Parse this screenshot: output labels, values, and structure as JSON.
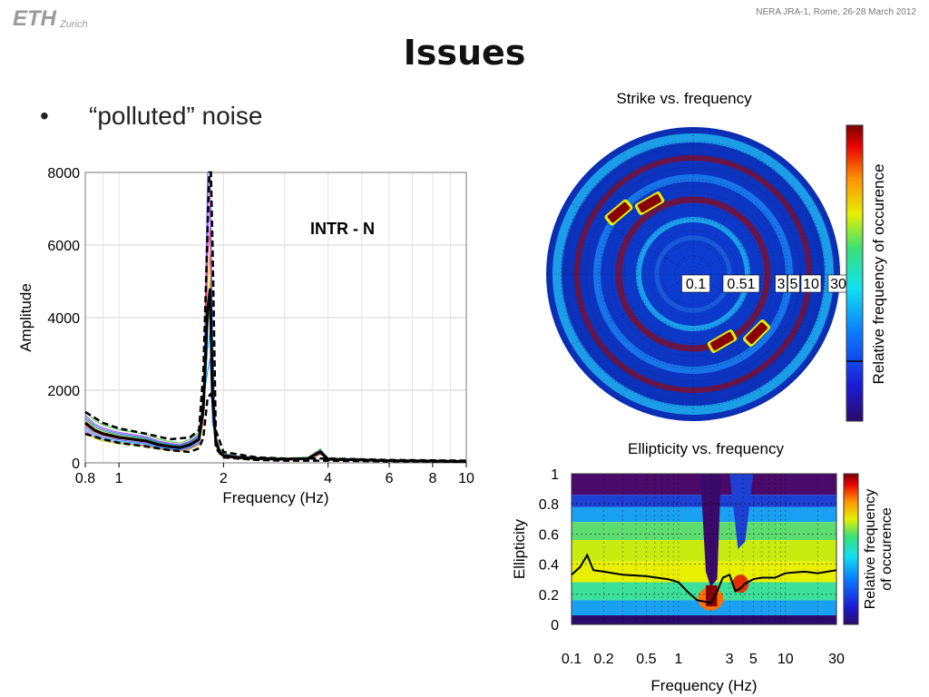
{
  "header": {
    "logo_text": "ETH",
    "logo_sub": "Zurich",
    "conference": "NERA JRA-1, Rome, 26-28 March 2012"
  },
  "slide": {
    "title": "Issues",
    "bullet": "“polluted” noise"
  },
  "colors": {
    "jet_low": "#2a0a6a",
    "jet_high": "#7a0000",
    "mean_line": "#000000"
  },
  "chart_data": [
    {
      "type": "line",
      "title": "",
      "annotation": "INTR - N",
      "xlabel": "Frequency (Hz)",
      "ylabel": "Amplitude",
      "xscale": "log",
      "xlim": [
        0.8,
        10
      ],
      "ylim": [
        0,
        8000
      ],
      "xticks": [
        0.8,
        1,
        2,
        4,
        6,
        8,
        10
      ],
      "xtick_labels": [
        "0.8",
        "1",
        "2",
        "4",
        "6",
        "8",
        "10"
      ],
      "yticks": [
        0,
        2000,
        4000,
        6000,
        8000
      ],
      "ytick_labels": [
        "0",
        "2000",
        "4000",
        "6000",
        "8000"
      ],
      "grid": true,
      "series": [
        {
          "style": "mean",
          "x": [
            0.8,
            0.85,
            0.9,
            0.95,
            1.0,
            1.1,
            1.2,
            1.3,
            1.4,
            1.5,
            1.6,
            1.7,
            1.75,
            1.8,
            1.83,
            1.86,
            1.9,
            1.95,
            2.0,
            2.2,
            2.5,
            3.0,
            3.5,
            3.8,
            4.0,
            5.0,
            6.0,
            8.0,
            10.0
          ],
          "y": [
            1100,
            900,
            800,
            750,
            700,
            650,
            600,
            500,
            450,
            420,
            500,
            650,
            1500,
            4200,
            4800,
            1800,
            600,
            300,
            200,
            150,
            120,
            100,
            120,
            300,
            100,
            80,
            60,
            50,
            40
          ]
        },
        {
          "style": "dashed",
          "x": [
            0.8,
            0.9,
            1.0,
            1.2,
            1.4,
            1.6,
            1.7,
            1.75,
            1.8,
            1.82,
            1.84,
            1.86,
            1.9,
            2.0,
            2.5,
            3.0,
            4.0,
            6.0,
            10.0
          ],
          "y": [
            1400,
            1100,
            950,
            800,
            650,
            700,
            900,
            2500,
            6500,
            8000,
            8000,
            6000,
            900,
            300,
            150,
            120,
            120,
            80,
            60
          ]
        },
        {
          "style": "dashed",
          "x": [
            0.8,
            0.9,
            1.0,
            1.2,
            1.4,
            1.6,
            1.7,
            1.75,
            1.8,
            1.84,
            1.88,
            1.9,
            2.0,
            2.5,
            3.0,
            4.0,
            6.0,
            10.0
          ],
          "y": [
            800,
            650,
            550,
            450,
            350,
            300,
            400,
            700,
            1800,
            1900,
            1500,
            400,
            150,
            80,
            60,
            60,
            40,
            30
          ]
        }
      ]
    },
    {
      "type": "heatmap",
      "title": "Strike vs. frequency",
      "projection": "polar",
      "ring_labels": [
        "0.1",
        "0.51",
        "3",
        "5",
        "10",
        "30"
      ],
      "colorbar_label": "Relative frequency of occurence",
      "colormap": "jet"
    },
    {
      "type": "heatmap",
      "title": "Ellipticity vs. frequency",
      "xlabel": "Frequency (Hz)",
      "ylabel": "Ellipticity",
      "xscale": "log",
      "xlim": [
        0.1,
        30
      ],
      "ylim": [
        0,
        1
      ],
      "xticks": [
        0.1,
        0.2,
        0.5,
        1,
        3,
        5,
        10,
        30
      ],
      "xtick_labels": [
        "0.1",
        "0.2",
        "0.5",
        "1",
        "3",
        "5",
        "10",
        "30"
      ],
      "yticks": [
        0,
        0.2,
        0.4,
        0.6,
        0.8,
        1
      ],
      "ytick_labels": [
        "0",
        "0.2",
        "0.4",
        "0.6",
        "0.8",
        "1"
      ],
      "colorbar_label": "Relative frequency of occurence",
      "colormap": "jet",
      "series": [
        {
          "style": "median",
          "x": [
            0.1,
            0.12,
            0.14,
            0.16,
            0.2,
            0.3,
            0.5,
            0.8,
            1.0,
            1.2,
            1.5,
            1.8,
            2.0,
            2.3,
            2.6,
            3.0,
            3.4,
            3.8,
            4.2,
            5.0,
            6.0,
            8.0,
            10.0,
            15.0,
            20.0,
            30.0
          ],
          "y": [
            0.33,
            0.38,
            0.46,
            0.36,
            0.35,
            0.33,
            0.32,
            0.3,
            0.28,
            0.22,
            0.16,
            0.15,
            0.14,
            0.22,
            0.31,
            0.33,
            0.22,
            0.24,
            0.27,
            0.3,
            0.31,
            0.31,
            0.34,
            0.35,
            0.34,
            0.36
          ]
        }
      ]
    }
  ]
}
